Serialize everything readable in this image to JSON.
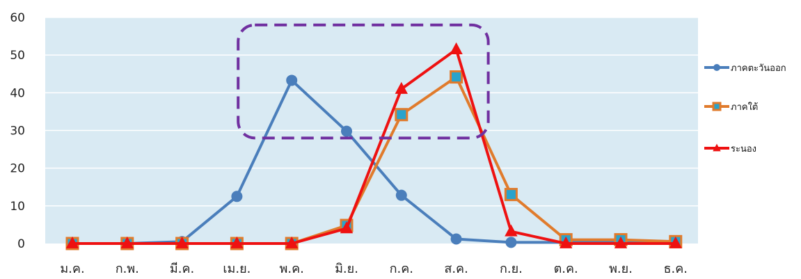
{
  "chart_data": {
    "type": "line",
    "categories": [
      "ม.ค.",
      "ก.พ.",
      "มี.ค.",
      "เม.ย.",
      "พ.ค.",
      "มิ.ย.",
      "ก.ค.",
      "ส.ค.",
      "ก.ย.",
      "ต.ค.",
      "พ.ย.",
      "ธ.ค."
    ],
    "series": [
      {
        "name": "ภาคตะวันออก",
        "values": [
          0,
          0,
          0.5,
          12.5,
          43.3,
          29.8,
          12.8,
          1.2,
          0.3,
          0.3,
          0.3,
          0.3
        ],
        "color": "#4a7ebb",
        "marker": "circle"
      },
      {
        "name": "ภาคใต้",
        "values": [
          0,
          0,
          0,
          0,
          0,
          4.8,
          34.2,
          44.2,
          13,
          1,
          1,
          0.5
        ],
        "color": "#e07b2c",
        "marker": "square"
      },
      {
        "name": "ระนอง",
        "values": [
          0,
          0,
          0,
          0,
          0,
          4,
          41,
          51.5,
          3.2,
          0,
          0,
          0
        ],
        "color": "#ee1111",
        "marker": "triangle"
      }
    ],
    "ylim": [
      0,
      60
    ],
    "yticks": [
      0,
      10,
      20,
      30,
      40,
      50,
      60
    ],
    "title": "",
    "xlabel": "",
    "ylabel": "",
    "grid": true,
    "legend_position": "right",
    "plot_background": "#d9eaf3",
    "highlight_box": {
      "x_range": [
        "พ.ค.",
        "ส.ค."
      ],
      "y_range": [
        28,
        58
      ],
      "color": "#7030a0",
      "style": "dashed"
    }
  }
}
